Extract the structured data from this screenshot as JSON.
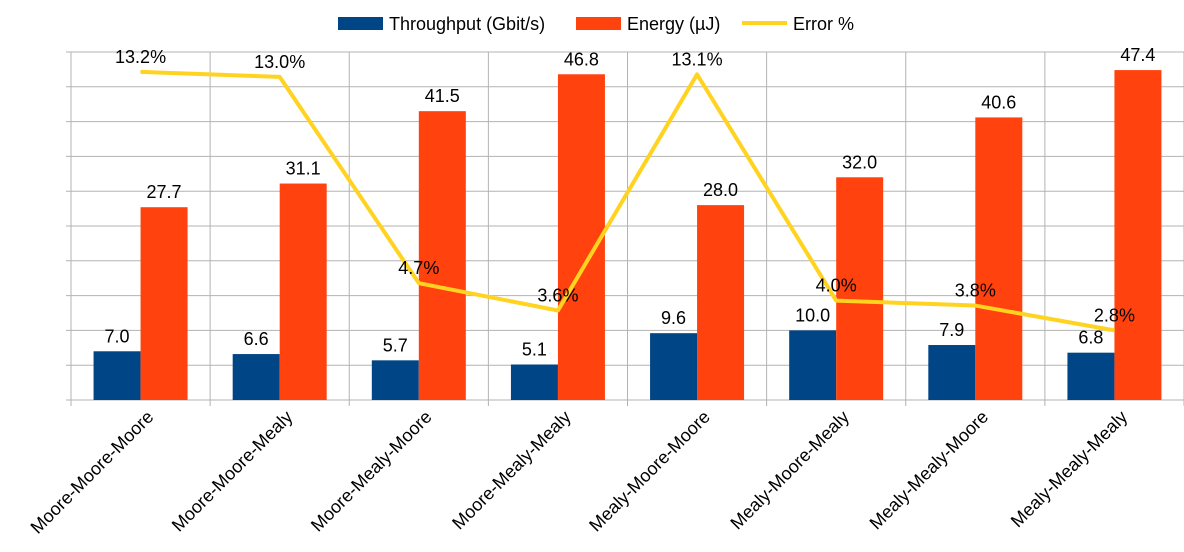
{
  "chart_data": {
    "type": "bar",
    "categories": [
      "Moore-Moore-Moore",
      "Moore-Moore-Mealy",
      "Moore-Mealy-Moore",
      "Moore-Mealy-Mealy",
      "Mealy-Moore-Moore",
      "Mealy-Moore-Mealy",
      "Mealy-Mealy-Moore",
      "Mealy-Mealy-Mealy"
    ],
    "series": [
      {
        "name": "Throughput (Gbit/s)",
        "kind": "bar",
        "color": "#004586",
        "values": [
          7.0,
          6.6,
          5.7,
          5.1,
          9.6,
          10.0,
          7.9,
          6.8
        ],
        "labels": [
          "7.0",
          "6.6",
          "5.7",
          "5.1",
          "9.6",
          "10.0",
          "7.9",
          "6.8"
        ]
      },
      {
        "name": "Energy (µJ)",
        "kind": "bar",
        "color": "#ff420e",
        "values": [
          27.7,
          31.1,
          41.5,
          46.8,
          28.0,
          32.0,
          40.6,
          47.4
        ],
        "labels": [
          "27.7",
          "31.1",
          "41.5",
          "46.8",
          "28.0",
          "32.0",
          "40.6",
          "47.4"
        ]
      },
      {
        "name": "Error %",
        "kind": "line",
        "color": "#ffd320",
        "values": [
          13.2,
          13.0,
          4.7,
          3.6,
          13.1,
          4.0,
          3.8,
          2.8
        ],
        "labels": [
          "13.2%",
          "13.0%",
          "4.7%",
          "3.6%",
          "13.1%",
          "4.0%",
          "3.8%",
          "2.8%"
        ]
      }
    ],
    "ylim": [
      0,
      50
    ],
    "y2lim": [
      0,
      14
    ],
    "grid": true,
    "legend": "top-center"
  }
}
